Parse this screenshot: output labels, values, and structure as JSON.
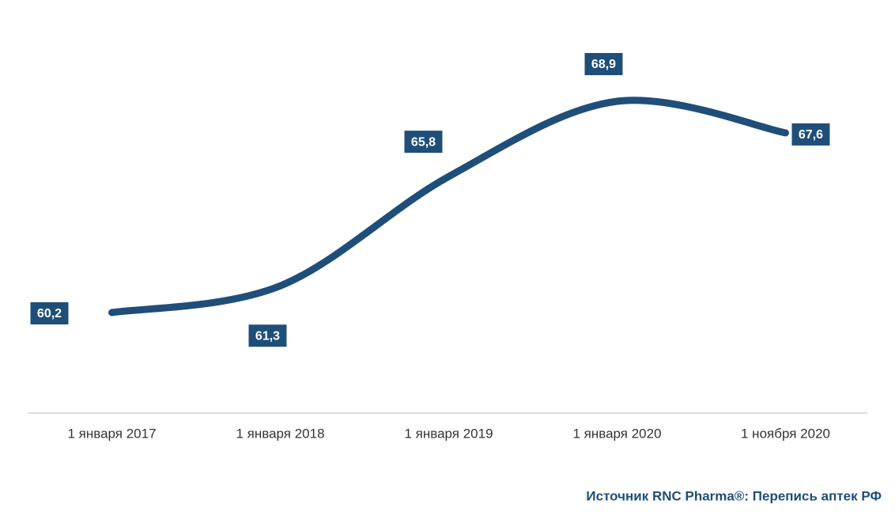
{
  "chart_data": {
    "type": "line",
    "categories": [
      "1 января 2017",
      "1 января 2018",
      "1 января 2019",
      "1 января 2020",
      "1 ноября 2020"
    ],
    "values": [
      60.2,
      61.3,
      65.8,
      68.9,
      67.6
    ],
    "value_labels": [
      "60,2",
      "61,3",
      "65,8",
      "68,9",
      "67,6"
    ],
    "color": "#1f4e79",
    "source": "Источник RNC Pharma®: Перепись аптек РФ"
  }
}
